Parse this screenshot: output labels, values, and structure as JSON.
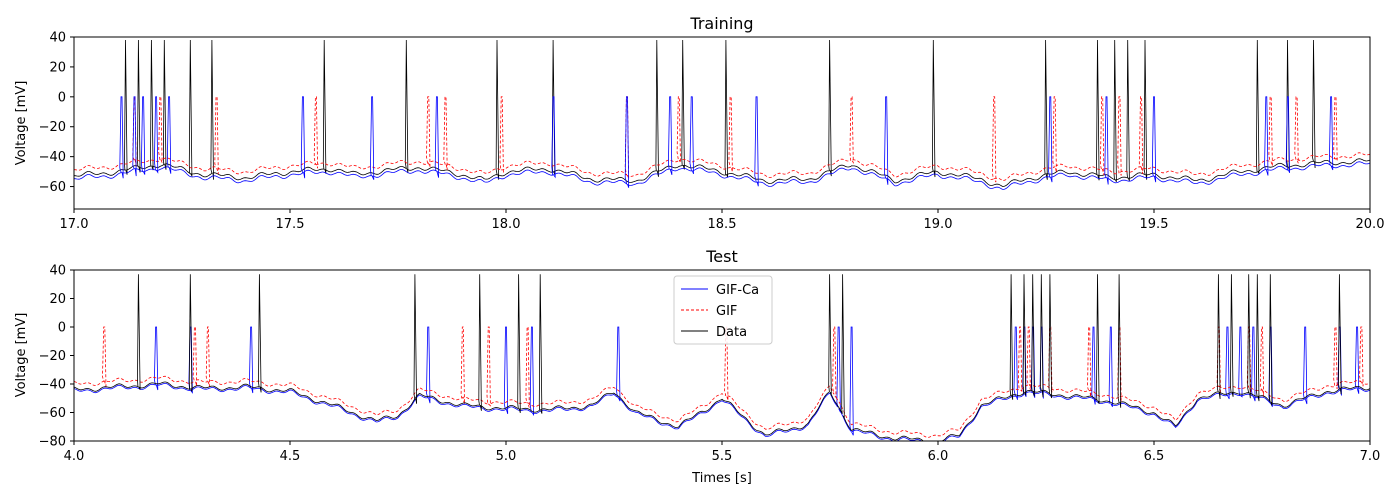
{
  "chart_data": [
    {
      "type": "line",
      "title": "Training",
      "xlabel": "",
      "ylabel": "Voltage [mV]",
      "xlim": [
        17.0,
        20.0
      ],
      "ylim": [
        -75,
        40
      ],
      "xticks": [
        17.0,
        17.5,
        18.0,
        18.5,
        19.0,
        19.5,
        20.0
      ],
      "xtick_labels": [
        "17.0",
        "17.5",
        "18.0",
        "18.5",
        "19.0",
        "19.5",
        "20.0"
      ],
      "yticks": [
        -60,
        -40,
        -20,
        0,
        20,
        40
      ],
      "ytick_labels": [
        "−60",
        "−40",
        "−20",
        "0",
        "20",
        "40"
      ],
      "baseline": {
        "x": [
          17.0,
          17.1,
          17.2,
          17.3,
          17.4,
          17.5,
          17.6,
          17.65,
          17.7,
          17.8,
          17.9,
          17.95,
          18.0,
          18.1,
          18.2,
          18.3,
          18.4,
          18.5,
          18.6,
          18.7,
          18.8,
          18.9,
          19.0,
          19.1,
          19.15,
          19.2,
          19.3,
          19.4,
          19.5,
          19.6,
          19.7,
          19.8,
          19.9,
          20.0
        ],
        "y": [
          -53,
          -50,
          -45,
          -52,
          -54,
          -50,
          -48,
          -52,
          -50,
          -47,
          -52,
          -56,
          -50,
          -48,
          -55,
          -56,
          -45,
          -50,
          -56,
          -55,
          -45,
          -56,
          -50,
          -55,
          -60,
          -55,
          -50,
          -54,
          -52,
          -56,
          -50,
          -46,
          -44,
          -43
        ]
      },
      "series": [
        {
          "name": "Data",
          "color": "#000000",
          "style": "solid",
          "offset": 0,
          "spike_height": 38,
          "spikes": [
            17.12,
            17.15,
            17.18,
            17.21,
            17.27,
            17.32,
            17.58,
            17.77,
            17.98,
            18.11,
            18.35,
            18.41,
            18.51,
            18.75,
            18.99,
            19.25,
            19.37,
            19.41,
            19.44,
            19.48,
            19.74,
            19.81,
            19.87
          ]
        },
        {
          "name": "GIF",
          "color": "#ff0000",
          "style": "dashed",
          "offset": 4,
          "spike_height": 0,
          "spikes": [
            17.14,
            17.2,
            17.33,
            17.56,
            17.82,
            17.86,
            17.99,
            18.28,
            18.4,
            18.52,
            18.8,
            19.13,
            19.27,
            19.38,
            19.42,
            19.47,
            19.77,
            19.83,
            19.92
          ]
        },
        {
          "name": "GIF-Ca",
          "color": "#0000ff",
          "style": "solid",
          "offset": -2,
          "spike_height": 0,
          "spikes": [
            17.11,
            17.14,
            17.16,
            17.19,
            17.22,
            17.53,
            17.69,
            17.84,
            18.11,
            18.28,
            18.38,
            18.43,
            18.58,
            18.88,
            19.26,
            19.39,
            19.5,
            19.76,
            19.81,
            19.91
          ]
        }
      ],
      "legend": null,
      "grid": false
    },
    {
      "type": "line",
      "title": "Test",
      "xlabel": "Times [s]",
      "ylabel": "Voltage [mV]",
      "xlim": [
        4.0,
        7.0
      ],
      "ylim": [
        -80,
        40
      ],
      "xticks": [
        4.0,
        4.5,
        5.0,
        5.5,
        6.0,
        6.5,
        7.0
      ],
      "xtick_labels": [
        "4.0",
        "4.5",
        "5.0",
        "5.5",
        "6.0",
        "6.5",
        "7.0"
      ],
      "yticks": [
        -80,
        -60,
        -40,
        -20,
        0,
        20,
        40
      ],
      "ytick_labels": [
        "−80",
        "−60",
        "−40",
        "−20",
        "0",
        "20",
        "40"
      ],
      "baseline": {
        "x": [
          4.0,
          4.1,
          4.2,
          4.3,
          4.4,
          4.5,
          4.6,
          4.7,
          4.75,
          4.8,
          4.9,
          5.0,
          5.1,
          5.2,
          5.25,
          5.3,
          5.4,
          5.5,
          5.6,
          5.7,
          5.75,
          5.8,
          5.9,
          6.0,
          6.05,
          6.1,
          6.2,
          6.3,
          6.4,
          6.5,
          6.55,
          6.6,
          6.7,
          6.8,
          6.9,
          7.0
        ],
        "y": [
          -44,
          -42,
          -40,
          -43,
          -42,
          -45,
          -55,
          -66,
          -62,
          -48,
          -55,
          -57,
          -58,
          -55,
          -45,
          -60,
          -70,
          -50,
          -76,
          -68,
          -45,
          -72,
          -78,
          -80,
          -76,
          -55,
          -45,
          -48,
          -52,
          -60,
          -70,
          -50,
          -45,
          -55,
          -45,
          -42
        ]
      },
      "series": [
        {
          "name": "GIF-Ca",
          "color": "#0000ff",
          "style": "solid",
          "offset": -1,
          "spike_height": 0,
          "spikes": [
            4.19,
            4.27,
            4.41,
            4.82,
            5.0,
            5.06,
            5.26,
            5.77,
            5.8,
            6.18,
            6.2,
            6.22,
            6.24,
            6.36,
            6.4,
            6.67,
            6.7,
            6.73,
            6.77,
            6.85,
            6.93,
            6.97
          ]
        },
        {
          "name": "GIF",
          "color": "#ff0000",
          "style": "dashed",
          "offset": 4,
          "spike_height": 0,
          "spikes": [
            4.07,
            4.28,
            4.31,
            4.9,
            4.96,
            5.05,
            5.51,
            5.76,
            6.19,
            6.21,
            6.26,
            6.35,
            6.42,
            6.65,
            6.72,
            6.75,
            6.92,
            6.98
          ]
        },
        {
          "name": "Data",
          "color": "#000000",
          "style": "solid",
          "offset": 0,
          "spike_height": 37,
          "spikes": [
            4.15,
            4.27,
            4.43,
            4.79,
            4.94,
            5.03,
            5.08,
            5.75,
            5.78,
            6.17,
            6.2,
            6.22,
            6.24,
            6.26,
            6.37,
            6.42,
            6.65,
            6.68,
            6.72,
            6.74,
            6.77,
            6.93
          ]
        }
      ],
      "legend": {
        "placement": "top-center",
        "entries": [
          {
            "label": "GIF-Ca",
            "color": "#0000ff",
            "style": "solid"
          },
          {
            "label": "GIF",
            "color": "#ff0000",
            "style": "dashed"
          },
          {
            "label": "Data",
            "color": "#000000",
            "style": "solid"
          }
        ]
      },
      "grid": false
    }
  ]
}
